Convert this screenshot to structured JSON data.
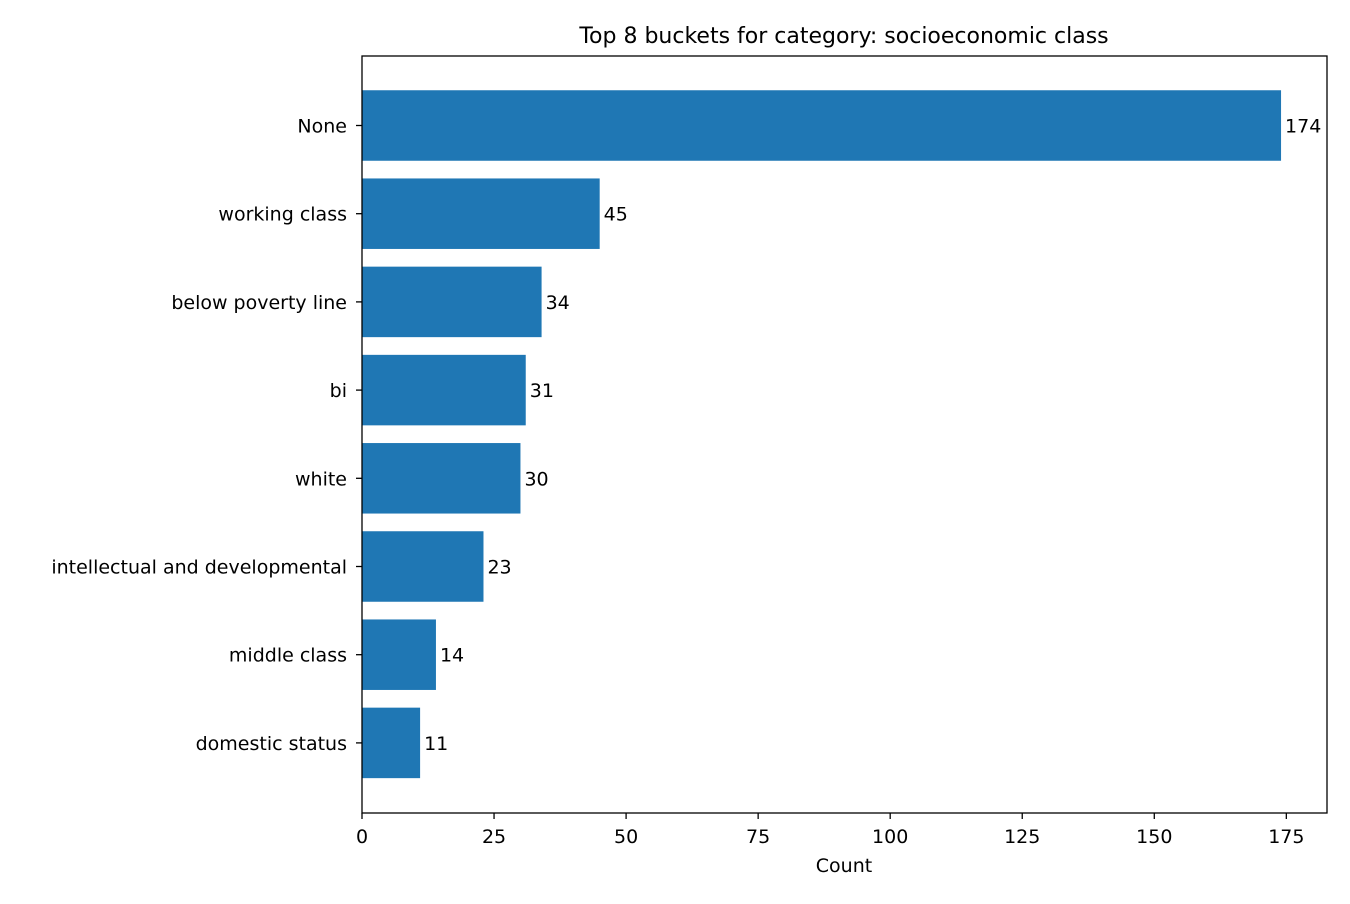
{
  "chart_data": {
    "type": "bar",
    "orientation": "horizontal",
    "title": "Top 8 buckets for category: socioeconomic class",
    "xlabel": "Count",
    "ylabel": "",
    "categories": [
      "None",
      "working class",
      "below poverty line",
      "bi",
      "white",
      "intellectual and developmental",
      "middle class",
      "domestic status"
    ],
    "values": [
      174,
      45,
      34,
      31,
      30,
      23,
      14,
      11
    ],
    "data_labels": [
      "174",
      "45",
      "34",
      "31",
      "30",
      "23",
      "14",
      "11"
    ],
    "xlim": [
      0,
      182.7
    ],
    "xticks": [
      0,
      25,
      50,
      75,
      100,
      125,
      150,
      175
    ],
    "xtick_labels": [
      "0",
      "25",
      "50",
      "75",
      "100",
      "125",
      "150",
      "175"
    ],
    "grid": false,
    "legend": "none",
    "bar_color": "#1f77b4"
  }
}
